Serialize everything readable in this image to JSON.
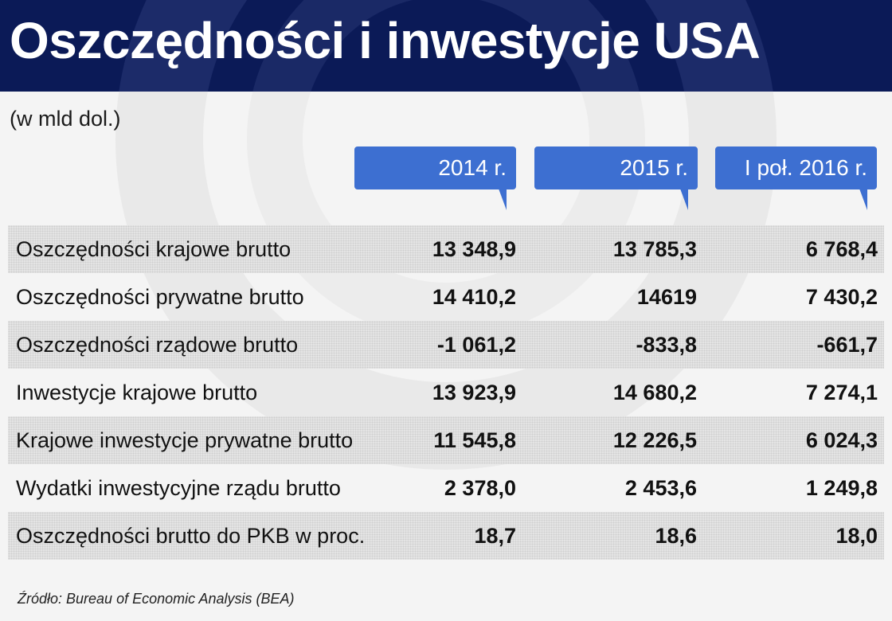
{
  "title": "Oszczędności i inwestycje USA",
  "unit_note": "(w mld dol.)",
  "source": "Źródło: Bureau of Economic Analysis (BEA)",
  "colors": {
    "header_bg": "#0b1a57",
    "column_header_bg": "#3d6fd1",
    "page_bg": "#f4f4f4",
    "shaded_row_bg": "#e6e6e6"
  },
  "chart_data": {
    "type": "table",
    "title": "Oszczędności i inwestycje USA",
    "columns": [
      "2014 r.",
      "2015 r.",
      "I poł. 2016 r."
    ],
    "rows": [
      {
        "label": "Oszczędności krajowe brutto",
        "values": [
          "13 348,9",
          "13 785,3",
          "6 768,4"
        ]
      },
      {
        "label": "Oszczędności prywatne brutto",
        "values": [
          "14 410,2",
          "14619",
          "7 430,2"
        ]
      },
      {
        "label": "Oszczędności rządowe brutto",
        "values": [
          "-1 061,2",
          "-833,8",
          "-661,7"
        ]
      },
      {
        "label": "Inwestycje krajowe brutto",
        "values": [
          "13 923,9",
          "14 680,2",
          "7 274,1"
        ]
      },
      {
        "label": "Krajowe inwestycje prywatne brutto",
        "values": [
          "11 545,8",
          "12 226,5",
          "6 024,3"
        ]
      },
      {
        "label": "Wydatki inwestycyjne rządu brutto",
        "values": [
          "2 378,0",
          "2 453,6",
          "1 249,8"
        ]
      },
      {
        "label": "Oszczędności brutto do PKB w proc.",
        "values": [
          "18,7",
          "18,6",
          "18,0"
        ]
      }
    ]
  }
}
